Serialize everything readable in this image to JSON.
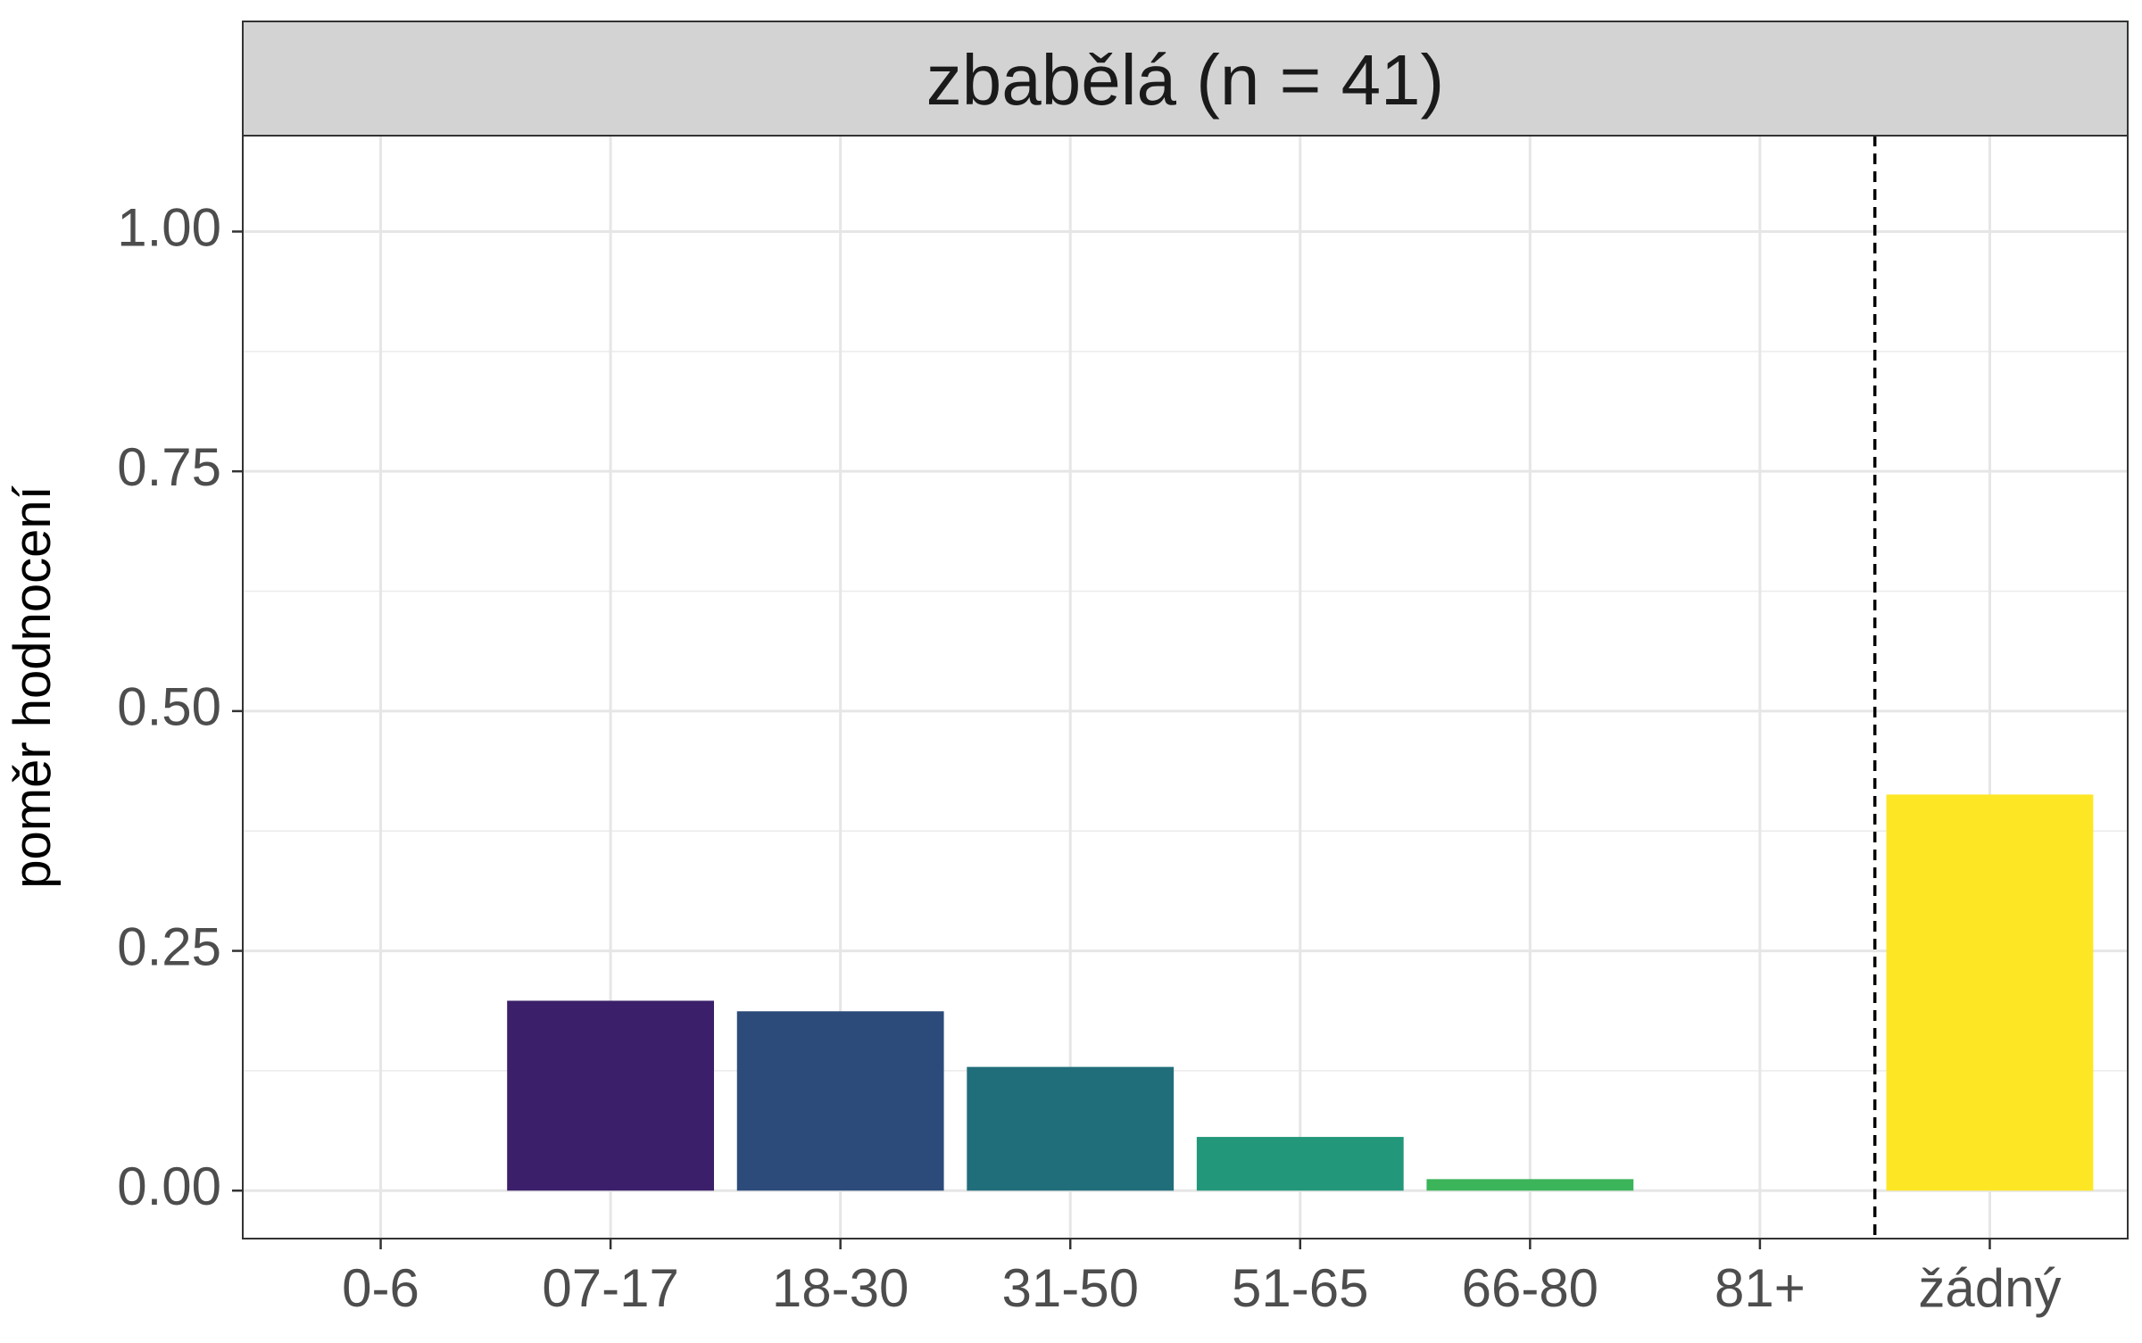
{
  "chart_data": {
    "type": "bar",
    "title": "zbabělá (n = 41)",
    "ylabel": "poměr hodnocení",
    "xlabel": "",
    "categories": [
      "0-6",
      "07-17",
      "18-30",
      "31-50",
      "51-65",
      "66-80",
      "81+",
      "žádný"
    ],
    "values": [
      0.0,
      0.198,
      0.187,
      0.129,
      0.056,
      0.012,
      0.0,
      0.413
    ],
    "colors": [
      "#440154",
      "#3b1f6a",
      "#2c4b7a",
      "#216e7b",
      "#22977a",
      "#3bb45a",
      "#7ad151",
      "#fde725"
    ],
    "ylim": [
      -0.05,
      1.1
    ],
    "y_ticks": [
      0.0,
      0.25,
      0.5,
      0.75,
      1.0
    ],
    "y_tick_labels": [
      "0.00",
      "0.25",
      "0.50",
      "0.75",
      "1.00"
    ],
    "reference_line": {
      "between": [
        "81+",
        "žádný"
      ],
      "style": "dashed",
      "color": "#000000"
    },
    "grid": true,
    "legend": "none",
    "strip_background": "#d3d3d3"
  }
}
